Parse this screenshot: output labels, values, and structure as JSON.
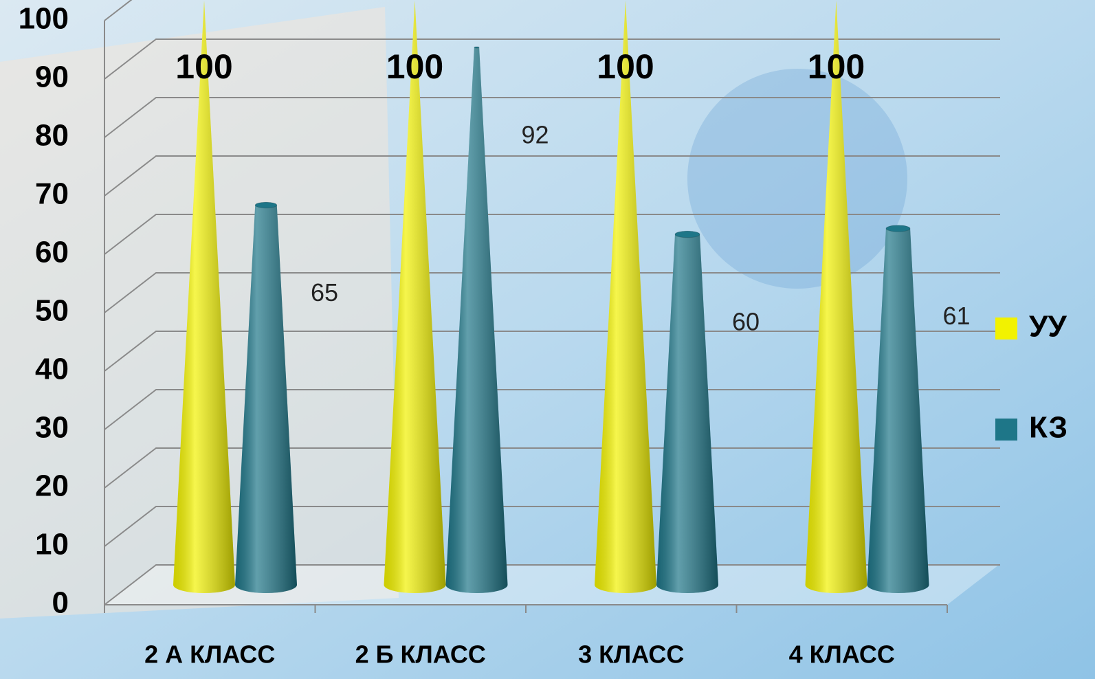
{
  "chart_data": {
    "type": "cone",
    "categories": [
      "2 А КЛАСС",
      "2 Б КЛАСС",
      "3 КЛАСС",
      "4 КЛАСС"
    ],
    "series": [
      {
        "name": "УУ",
        "color": "#f2f200",
        "values": [
          100,
          100,
          100,
          100
        ]
      },
      {
        "name": "КЗ",
        "color": "#1e7688",
        "values": [
          65,
          92,
          60,
          61
        ]
      }
    ],
    "ylim": [
      0,
      100
    ],
    "yticks": [
      0,
      10,
      20,
      30,
      40,
      50,
      60,
      70,
      80,
      90,
      100
    ],
    "grid": true,
    "legend": "right"
  }
}
